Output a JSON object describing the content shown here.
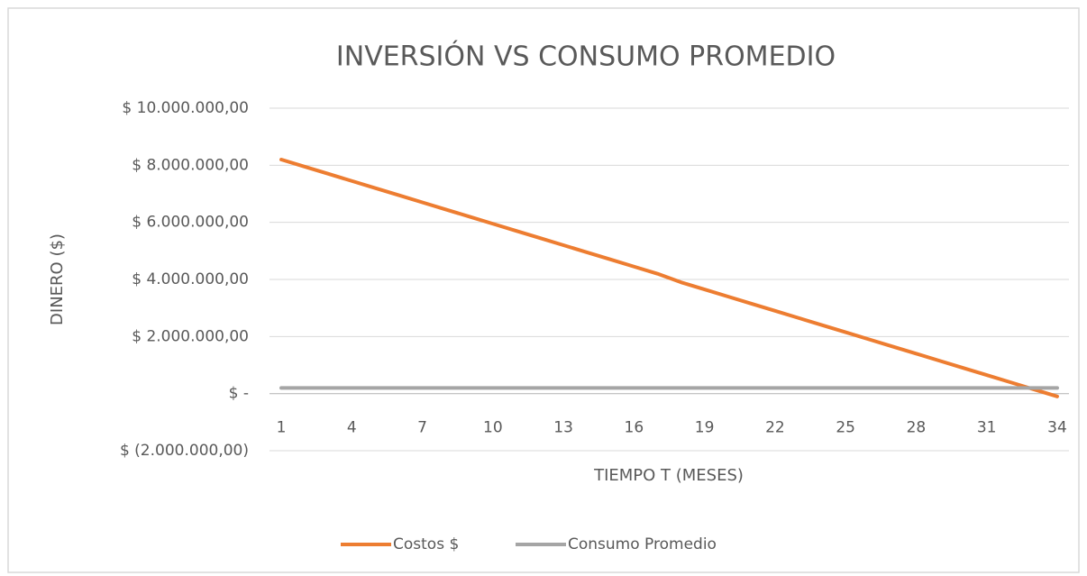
{
  "chart_data": {
    "type": "line",
    "title": "INVERSIÓN VS CONSUMO PROMEDIO",
    "y_label": "DINERO ($)",
    "x_label": "TIEMPO T (MESES)",
    "categories": [
      1,
      null,
      null,
      4,
      null,
      null,
      7,
      null,
      null,
      10,
      null,
      null,
      13,
      null,
      null,
      16,
      null,
      null,
      19,
      null,
      null,
      22,
      null,
      null,
      25,
      null,
      null,
      28,
      null,
      null,
      31,
      null,
      null,
      34
    ],
    "series": [
      {
        "name": "Costos $",
        "color": "#ed7d31",
        "values": [
          8200000,
          7950000,
          7700000,
          7450000,
          7200000,
          6950000,
          6700000,
          6450000,
          6200000,
          5950000,
          5700000,
          5450000,
          5200000,
          4950000,
          4700000,
          4450000,
          4200000,
          3900000,
          3650000,
          3400000,
          3150000,
          2900000,
          2650000,
          2400000,
          2150000,
          1900000,
          1650000,
          1400000,
          1150000,
          900000,
          650000,
          400000,
          150000,
          -100000
        ]
      },
      {
        "name": "Consumo Promedio",
        "color": "#a5a5a5",
        "values": [
          200000,
          200000,
          200000,
          200000,
          200000,
          200000,
          200000,
          200000,
          200000,
          200000,
          200000,
          200000,
          200000,
          200000,
          200000,
          200000,
          200000,
          200000,
          200000,
          200000,
          200000,
          200000,
          200000,
          200000,
          200000,
          200000,
          200000,
          200000,
          200000,
          200000,
          200000,
          200000,
          200000,
          200000
        ]
      }
    ],
    "ylim": [
      -2000000,
      10000000
    ],
    "yticks": [
      {
        "value": -2000000,
        "label": "$ (2.000.000,00)"
      },
      {
        "value": 0,
        "label": "$ -"
      },
      {
        "value": 2000000,
        "label": "$ 2.000.000,00"
      },
      {
        "value": 4000000,
        "label": "$ 4.000.000,00"
      },
      {
        "value": 6000000,
        "label": "$ 6.000.000,00"
      },
      {
        "value": 8000000,
        "label": "$ 8.000.000,00"
      },
      {
        "value": 10000000,
        "label": "$ 10.000.000,00"
      }
    ],
    "grid": true,
    "legend": "bottom"
  }
}
